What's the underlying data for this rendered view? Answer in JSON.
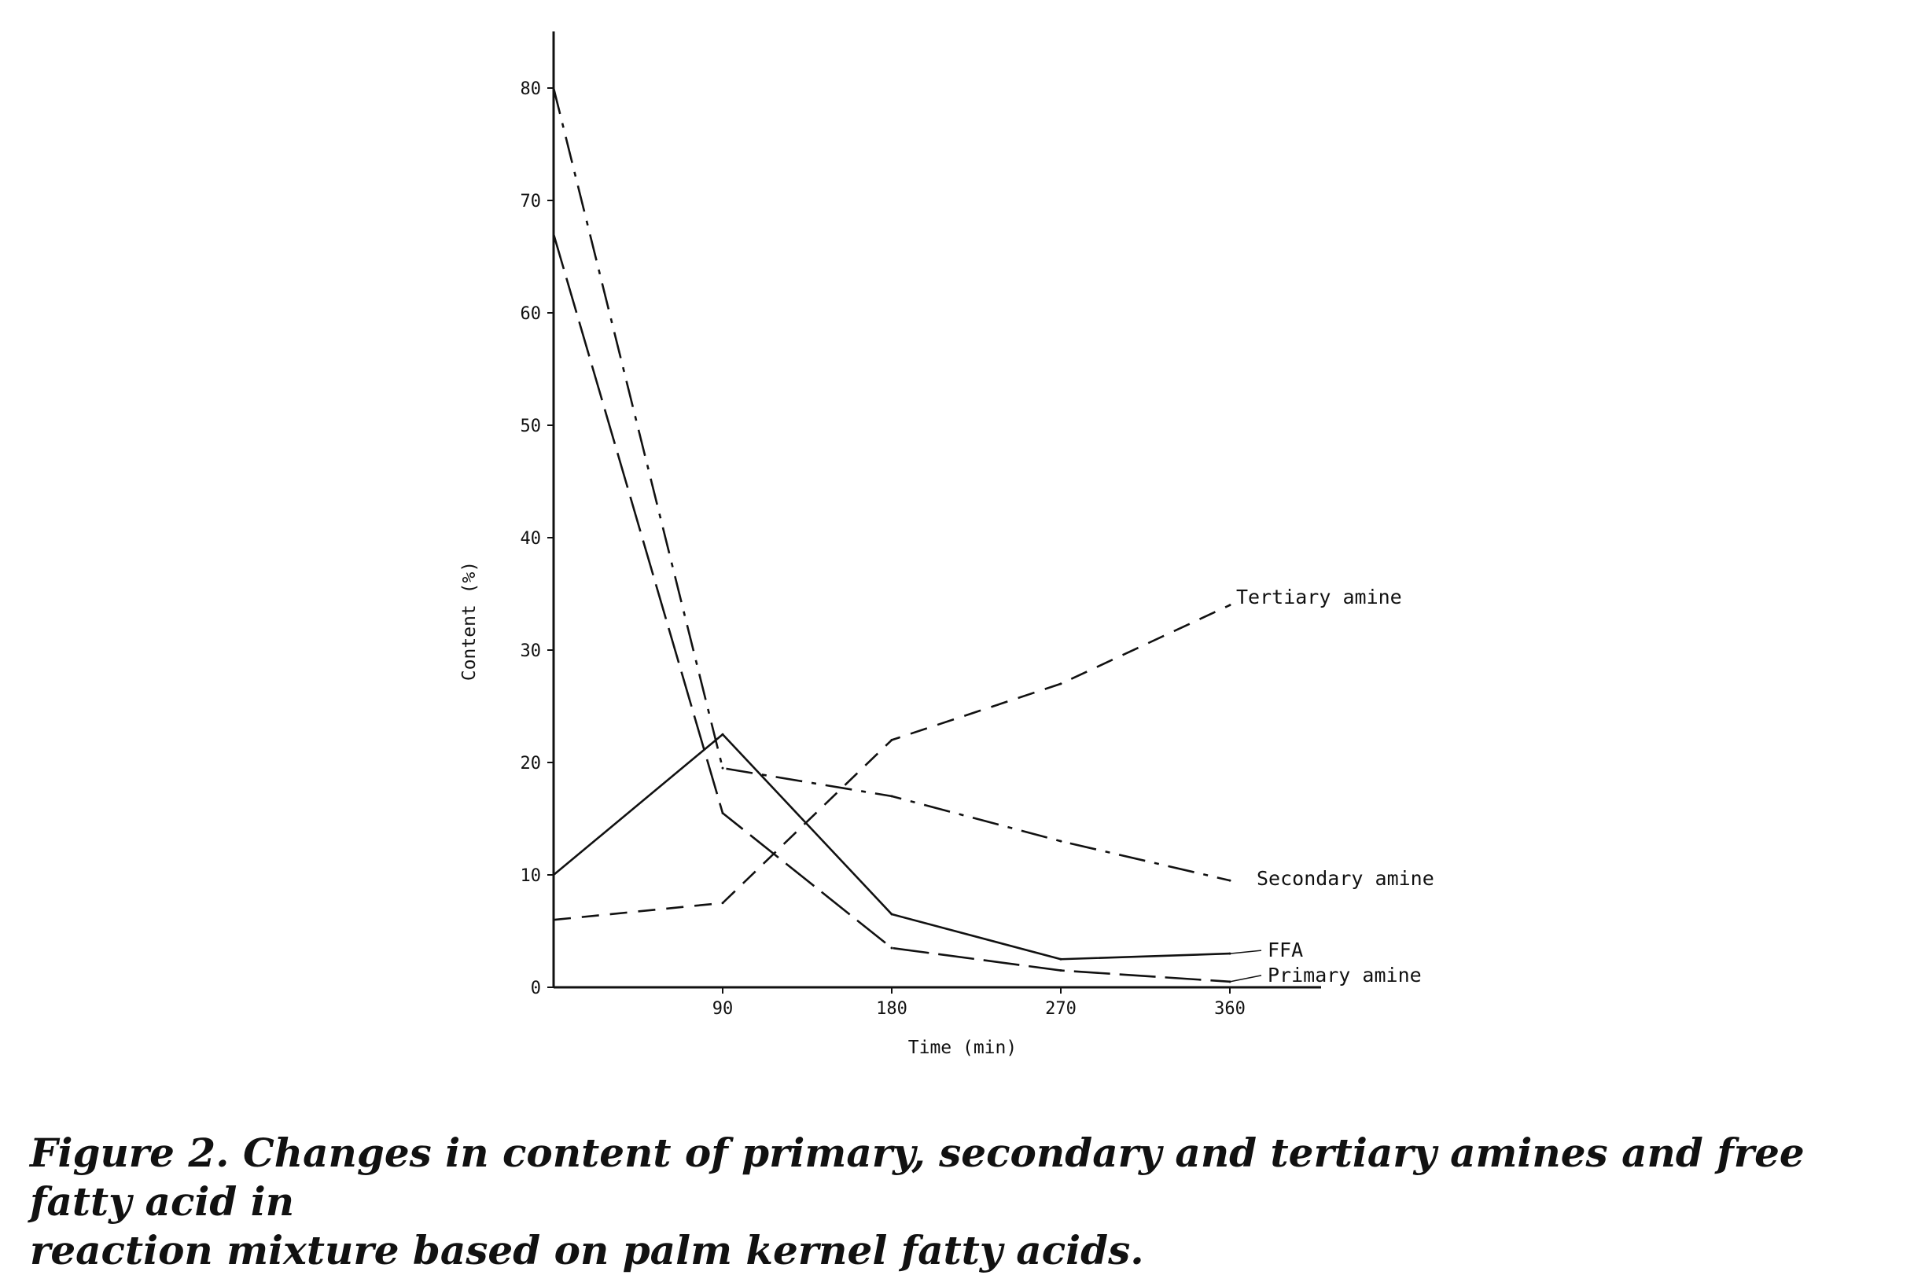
{
  "chart_data": {
    "type": "line",
    "xlabel": "Time (min)",
    "ylabel": "Content (%)",
    "x_ticks": [
      90,
      180,
      270,
      360
    ],
    "y_ticks": [
      0,
      10,
      20,
      30,
      40,
      50,
      60,
      70,
      80
    ],
    "xlim": [
      0,
      420
    ],
    "ylim": [
      0,
      85
    ],
    "grid": false,
    "legend": "labels at line ends",
    "series": [
      {
        "name": "Tertiary amine",
        "style": "dash",
        "x": [
          0,
          90,
          180,
          270,
          360
        ],
        "y": [
          6,
          7.5,
          22,
          27,
          34
        ]
      },
      {
        "name": "Secondary amine",
        "style": "dashdot",
        "x": [
          0,
          90,
          180,
          270,
          360
        ],
        "y": [
          80,
          19.5,
          17,
          13,
          9.5
        ]
      },
      {
        "name": "FFA",
        "style": "solid",
        "x": [
          0,
          90,
          180,
          270,
          360
        ],
        "y": [
          10,
          22.5,
          6.5,
          2.5,
          3
        ]
      },
      {
        "name": "Primary amine",
        "style": "longdash",
        "x": [
          0,
          90,
          180,
          270,
          360
        ],
        "y": [
          67,
          15.5,
          3.5,
          1.5,
          0.5
        ]
      }
    ]
  },
  "caption": {
    "line1": "Figure 2. Changes in content of primary, secondary and tertiary amines and free fatty acid in",
    "line2": "reaction mixture based on palm kernel fatty acids."
  }
}
